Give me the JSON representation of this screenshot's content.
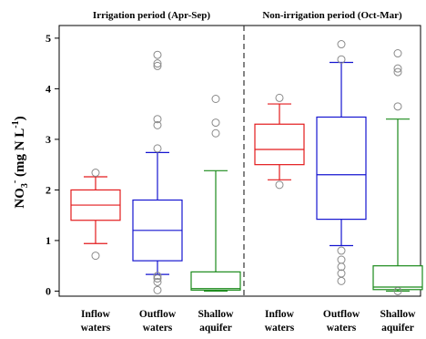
{
  "chart_data": {
    "type": "boxplot",
    "ylabel": {
      "main": "NO",
      "sub": "3",
      "sup": "-",
      "rest": " (mg N L",
      "rest_sup": "-1",
      "end": ")"
    },
    "ylim": [
      -0.1,
      5.25
    ],
    "yticks": [
      0,
      1,
      2,
      3,
      4,
      5
    ],
    "grid": false,
    "panels": [
      {
        "title": "Irrigation period (Apr-Sep)",
        "boxes": [
          {
            "category": "Inflow waters",
            "color": "#e31a1c",
            "whisker_low": 0.94,
            "q1": 1.4,
            "median": 1.7,
            "q3": 2.0,
            "whisker_high": 2.26,
            "outliers": [
              0.7,
              2.34
            ]
          },
          {
            "category": "Outflow waters",
            "color": "#1515d0",
            "whisker_low": 0.33,
            "q1": 0.6,
            "median": 1.2,
            "q3": 1.8,
            "whisker_high": 2.74,
            "outliers": [
              0.02,
              0.18,
              0.25,
              0.3,
              2.82,
              3.28,
              3.4,
              4.45,
              4.5,
              4.67
            ]
          },
          {
            "category": "Shallow aquifer",
            "color": "#1a8a1a",
            "whisker_low": 0.0,
            "q1": 0.02,
            "median": 0.05,
            "q3": 0.38,
            "whisker_high": 2.38,
            "outliers": [
              3.12,
              3.33,
              3.8
            ]
          }
        ]
      },
      {
        "title": "Non-irrigation period (Oct-Mar)",
        "boxes": [
          {
            "category": "Inflow waters",
            "color": "#e31a1c",
            "whisker_low": 2.2,
            "q1": 2.5,
            "median": 2.8,
            "q3": 3.3,
            "whisker_high": 3.7,
            "outliers": [
              2.1,
              3.82
            ]
          },
          {
            "category": "Outflow waters",
            "color": "#1515d0",
            "whisker_low": 0.9,
            "q1": 1.42,
            "median": 2.3,
            "q3": 3.44,
            "whisker_high": 4.52,
            "outliers": [
              0.2,
              0.35,
              0.48,
              0.62,
              0.8,
              4.58,
              4.88
            ]
          },
          {
            "category": "Shallow aquifer",
            "color": "#1a8a1a",
            "whisker_low": 0.0,
            "q1": 0.03,
            "median": 0.08,
            "q3": 0.5,
            "whisker_high": 3.4,
            "outliers": [
              0.0,
              3.65,
              4.33,
              4.4,
              4.7
            ]
          }
        ]
      }
    ],
    "category_labels": [
      [
        "Inflow",
        "waters"
      ],
      [
        "Outflow",
        "waters"
      ],
      [
        "Shallow",
        "aquifer"
      ]
    ]
  }
}
